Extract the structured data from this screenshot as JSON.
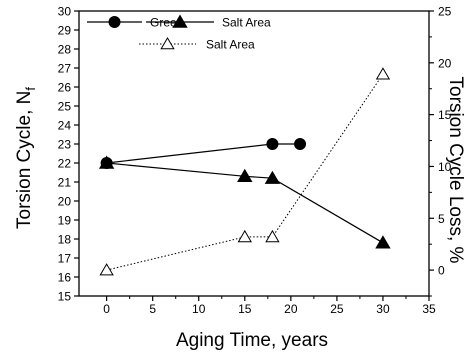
{
  "chart_data": {
    "type": "line",
    "xlabel": "Aging Time, years",
    "ylabel_left": "Torsion Cycle, N",
    "ylabel_left_subscript": "f",
    "ylabel_right": "Torsion Cycle Loss, %",
    "xlim": [
      -3,
      35
    ],
    "ylim_left": [
      15,
      30
    ],
    "ylim_right": [
      -2.5,
      25
    ],
    "x_ticks": [
      0,
      5,
      10,
      15,
      20,
      25,
      30,
      35
    ],
    "y_left_ticks": [
      15,
      16,
      17,
      18,
      19,
      20,
      21,
      22,
      23,
      24,
      25,
      26,
      27,
      28,
      29,
      30
    ],
    "y_right_ticks": [
      0,
      5,
      10,
      15,
      20,
      25
    ],
    "legend_position": "top-left",
    "series": [
      {
        "name": "Green",
        "axis": "left",
        "marker": "filled-circle",
        "line": "solid",
        "x": [
          0,
          18,
          21
        ],
        "y": [
          22,
          23,
          23
        ]
      },
      {
        "name": "Salt Area",
        "axis": "left",
        "marker": "filled-triangle",
        "line": "solid",
        "x": [
          0,
          15,
          18,
          30
        ],
        "y": [
          22,
          21.3,
          21.2,
          17.8
        ]
      },
      {
        "name": "Salt Area",
        "axis": "right",
        "marker": "open-triangle",
        "line": "dotted",
        "x": [
          0,
          15,
          18,
          30
        ],
        "y": [
          0,
          3.2,
          3.2,
          18.9
        ]
      }
    ]
  }
}
